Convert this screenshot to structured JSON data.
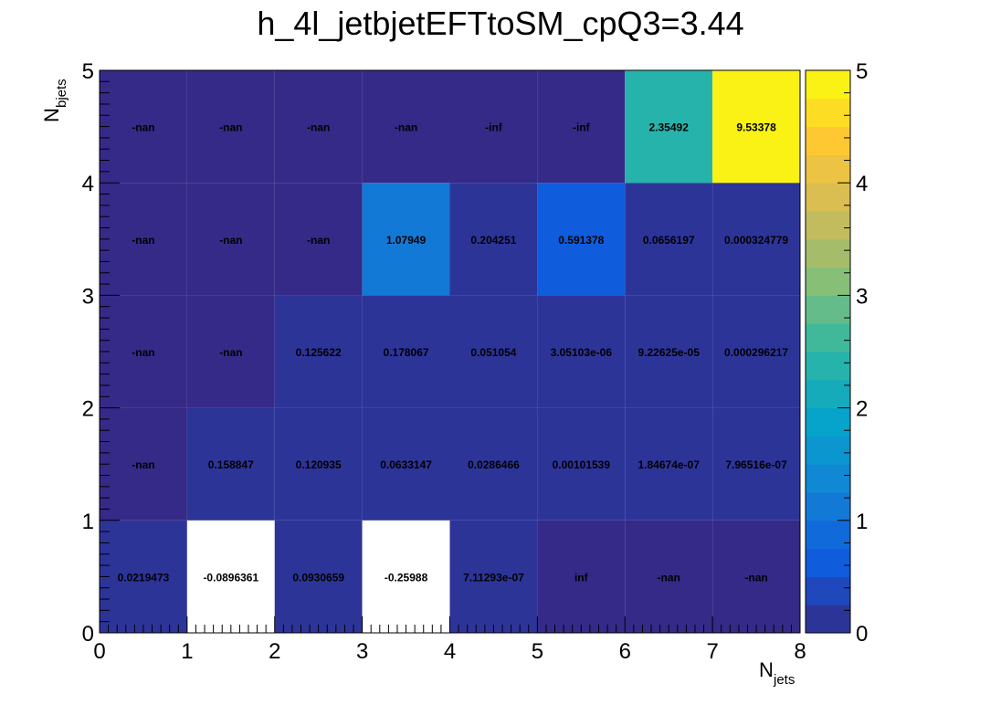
{
  "chart_data": {
    "type": "heatmap",
    "title": "h_4l_jetbjetEFTtoSM_cpQ3=3.44",
    "xlabel": "N",
    "xlabel_sub": "jets",
    "ylabel": "N",
    "ylabel_sub": "bjets",
    "x_bin_edges": [
      0,
      1,
      2,
      3,
      4,
      5,
      6,
      7,
      8
    ],
    "y_bin_edges": [
      0,
      1,
      2,
      3,
      4,
      5
    ],
    "xlim": [
      0,
      8
    ],
    "ylim": [
      0,
      5
    ],
    "x_ticks": [
      "0",
      "1",
      "2",
      "3",
      "4",
      "5",
      "6",
      "7",
      "8"
    ],
    "y_ticks": [
      "0",
      "1",
      "2",
      "3",
      "4",
      "5"
    ],
    "z_range": [
      0,
      5
    ],
    "colorbar_ticks": [
      "0",
      "1",
      "2",
      "3",
      "4",
      "5"
    ],
    "palette": "kBird",
    "underflow_fill": "#352a87",
    "below_min_fill": "#ffffff",
    "cells": [
      [
        {
          "label": "0.0219473",
          "value": 0.0219473
        },
        {
          "label": "-0.0896361",
          "value": -0.0896361
        },
        {
          "label": "0.0930659",
          "value": 0.0930659
        },
        {
          "label": "-0.25988",
          "value": -0.25988
        },
        {
          "label": "7.11293e-07",
          "value": 7.11293e-07
        },
        {
          "label": "inf",
          "value": null
        },
        {
          "label": "-nan",
          "value": null
        },
        {
          "label": "-nan",
          "value": null
        }
      ],
      [
        {
          "label": "-nan",
          "value": null
        },
        {
          "label": "0.158847",
          "value": 0.158847
        },
        {
          "label": "0.120935",
          "value": 0.120935
        },
        {
          "label": "0.0633147",
          "value": 0.0633147
        },
        {
          "label": "0.0286466",
          "value": 0.0286466
        },
        {
          "label": "0.00101539",
          "value": 0.00101539
        },
        {
          "label": "1.84674e-07",
          "value": 1.84674e-07
        },
        {
          "label": "7.96516e-07",
          "value": 7.96516e-07
        }
      ],
      [
        {
          "label": "-nan",
          "value": null
        },
        {
          "label": "-nan",
          "value": null
        },
        {
          "label": "0.125622",
          "value": 0.125622
        },
        {
          "label": "0.178067",
          "value": 0.178067
        },
        {
          "label": "0.051054",
          "value": 0.051054
        },
        {
          "label": "3.05103e-06",
          "value": 3.05103e-06
        },
        {
          "label": "9.22625e-05",
          "value": 9.22625e-05
        },
        {
          "label": "0.000296217",
          "value": 0.000296217
        }
      ],
      [
        {
          "label": "-nan",
          "value": null
        },
        {
          "label": "-nan",
          "value": null
        },
        {
          "label": "-nan",
          "value": null
        },
        {
          "label": "1.07949",
          "value": 1.07949
        },
        {
          "label": "0.204251",
          "value": 0.204251
        },
        {
          "label": "0.591378",
          "value": 0.591378
        },
        {
          "label": "0.0656197",
          "value": 0.0656197
        },
        {
          "label": "0.000324779",
          "value": 0.000324779
        }
      ],
      [
        {
          "label": "-nan",
          "value": null
        },
        {
          "label": "-nan",
          "value": null
        },
        {
          "label": "-nan",
          "value": null
        },
        {
          "label": "-nan",
          "value": null
        },
        {
          "label": "-inf",
          "value": null
        },
        {
          "label": "-inf",
          "value": null
        },
        {
          "label": "2.35492",
          "value": 2.35492
        },
        {
          "label": "9.53378",
          "value": 9.53378
        }
      ]
    ]
  }
}
